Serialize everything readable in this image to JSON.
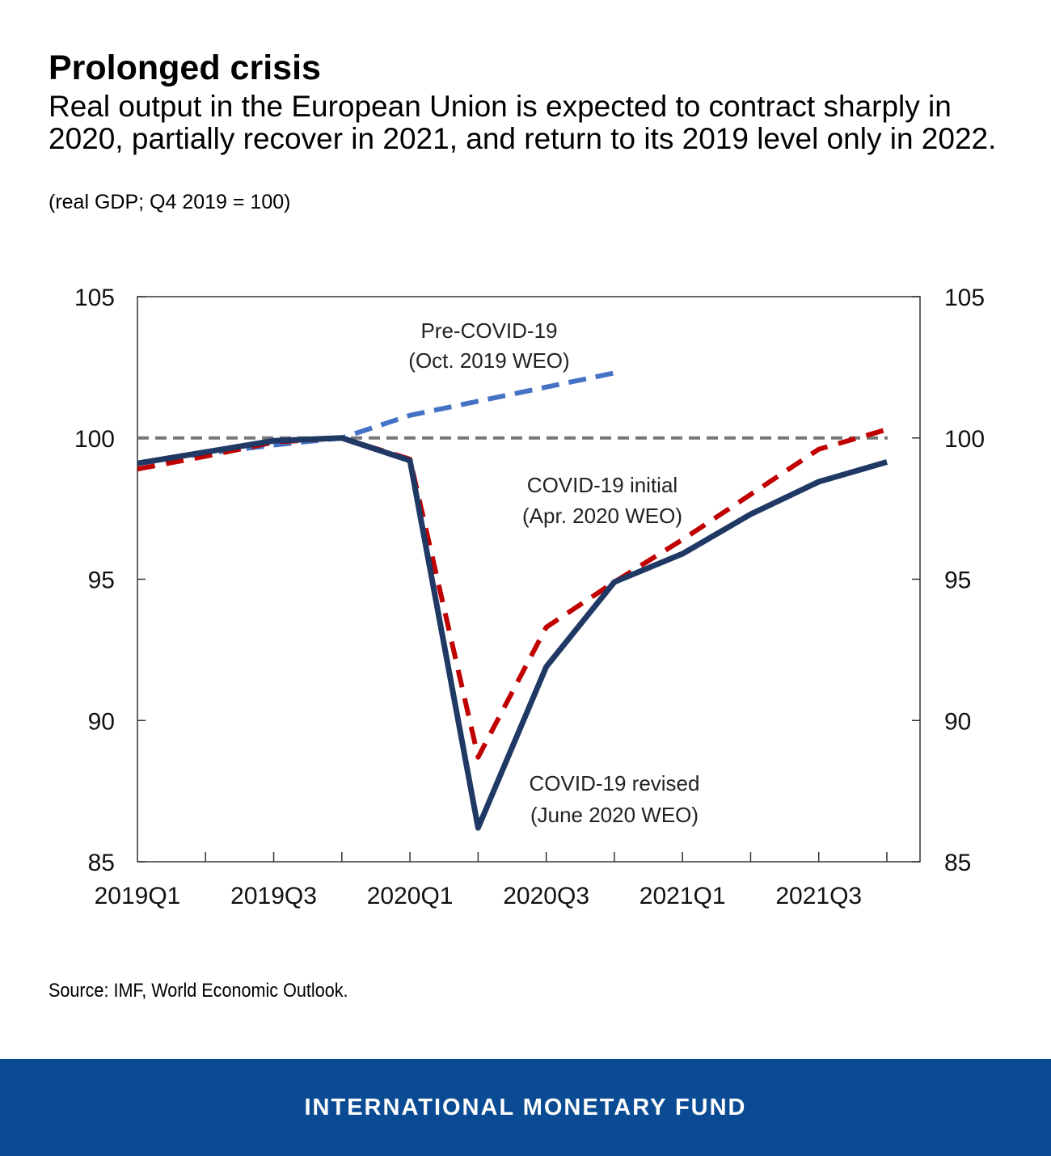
{
  "header": {
    "title": "Prolonged crisis",
    "subtitle": "Real output in the European Union is expected to contract sharply in 2020, partially recover in 2021, and return to its 2019 level only in 2022.",
    "units": "(real GDP; Q4 2019 = 100)"
  },
  "source": "Source: IMF, World Economic Outlook.",
  "footer": {
    "label": "INTERNATIONAL MONETARY FUND",
    "color": "#0a4b93"
  },
  "chart_data": {
    "type": "line",
    "x": [
      "2019Q1",
      "2019Q2",
      "2019Q3",
      "2019Q4",
      "2020Q1",
      "2020Q2",
      "2020Q3",
      "2020Q4",
      "2021Q1",
      "2021Q2",
      "2021Q3",
      "2021Q4"
    ],
    "x_tick_labels": [
      "2019Q1",
      "2019Q3",
      "2020Q1",
      "2020Q3",
      "2021Q1",
      "2021Q3"
    ],
    "ylim": [
      85,
      105
    ],
    "y_ticks": [
      85,
      90,
      95,
      100,
      105
    ],
    "y_axis_both_sides": true,
    "grid": false,
    "reference_line": {
      "y": 100,
      "color": "#777777",
      "style": "dashed"
    },
    "series": [
      {
        "name": "Pre-COVID-19 (Oct. 2019 WEO)",
        "label_lines": [
          "Pre-COVID-19",
          "(Oct. 2019 WEO)"
        ],
        "color": "#4472c4",
        "style": "dashed",
        "values": [
          99.1,
          99.45,
          99.75,
          100,
          100.8,
          101.3,
          101.8,
          102.3,
          null,
          null,
          null,
          null
        ]
      },
      {
        "name": "COVID-19 initial (Apr. 2020 WEO)",
        "label_lines": [
          "COVID-19 initial",
          "(Apr. 2020 WEO)"
        ],
        "color": "#c00000",
        "style": "dashed",
        "values": [
          98.9,
          99.35,
          99.85,
          100,
          99.25,
          88.7,
          93.3,
          94.9,
          96.4,
          98.0,
          99.6,
          100.3
        ]
      },
      {
        "name": "COVID-19 revised (June 2020 WEO)",
        "label_lines": [
          "COVID-19 revised",
          "(June 2020 WEO)"
        ],
        "color": "#1f3864",
        "style": "solid",
        "values": [
          99.1,
          99.5,
          99.9,
          100,
          99.2,
          86.2,
          91.9,
          94.9,
          95.9,
          97.3,
          98.45,
          99.15
        ]
      }
    ]
  }
}
